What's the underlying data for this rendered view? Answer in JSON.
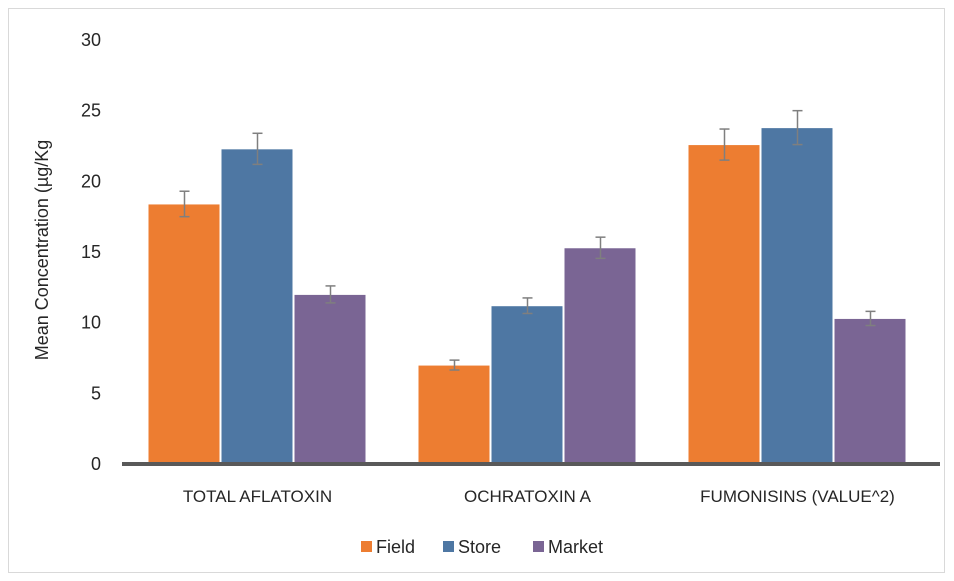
{
  "chart_data": {
    "type": "bar",
    "title": "",
    "xlabel": "",
    "ylabel": "Mean Concentration (µg/Kg",
    "ylim": [
      0,
      30
    ],
    "yticks": [
      "0",
      "5",
      "10",
      "15",
      "20",
      "25",
      "30"
    ],
    "categories": [
      "TOTAL AFLATOXIN",
      "OCHRATOXIN A",
      "FUMONISINS (VALUE^2)"
    ],
    "series": [
      {
        "name": "Field",
        "color": "#ED7D31",
        "values": [
          18.4,
          7.0,
          22.6
        ],
        "errors": [
          0.9,
          0.35,
          1.1
        ]
      },
      {
        "name": "Store",
        "color": "#4E77A3",
        "values": [
          22.3,
          11.2,
          23.8
        ],
        "errors": [
          1.1,
          0.55,
          1.2
        ]
      },
      {
        "name": "Market",
        "color": "#7A6594",
        "values": [
          12.0,
          15.3,
          10.3
        ],
        "errors": [
          0.6,
          0.75,
          0.5
        ]
      }
    ],
    "grid": false,
    "error_bars": true,
    "legend_position": "bottom-center"
  }
}
